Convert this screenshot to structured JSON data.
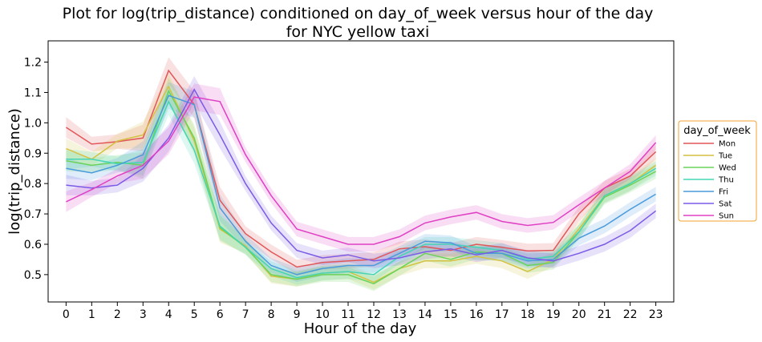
{
  "chart_data": {
    "type": "line",
    "title_line1": "Plot for log(trip_distance) conditioned on day_of_week versus hour of the day",
    "title_line2": "for NYC yellow taxi",
    "xlabel": "Hour of the day",
    "ylabel": "log(trip_distance)",
    "x": [
      0,
      1,
      2,
      3,
      4,
      5,
      6,
      7,
      8,
      9,
      10,
      11,
      12,
      13,
      14,
      15,
      16,
      17,
      18,
      19,
      20,
      21,
      22,
      23
    ],
    "xlim": [
      -0.7,
      23.7
    ],
    "ylim": [
      0.41,
      1.27
    ],
    "yticks": [
      "0.5",
      "0.6",
      "0.7",
      "0.8",
      "0.9",
      "1.0",
      "1.1",
      "1.2"
    ],
    "legend_title": "day_of_week",
    "legend_position": "outside-right",
    "series": [
      {
        "name": "Mon",
        "color": "#e15759",
        "values": [
          0.985,
          0.93,
          0.938,
          0.95,
          1.172,
          1.06,
          0.745,
          0.635,
          0.575,
          0.525,
          0.54,
          0.545,
          0.55,
          0.585,
          0.592,
          0.58,
          0.6,
          0.59,
          0.578,
          0.58,
          0.7,
          0.785,
          0.825,
          0.905
        ]
      },
      {
        "name": "Tue",
        "color": "#d4c142",
        "values": [
          0.915,
          0.88,
          0.94,
          0.96,
          1.12,
          0.94,
          0.65,
          0.595,
          0.495,
          0.485,
          0.505,
          0.51,
          0.475,
          0.52,
          0.545,
          0.545,
          0.56,
          0.545,
          0.51,
          0.55,
          0.65,
          0.76,
          0.8,
          0.86
        ]
      },
      {
        "name": "Wed",
        "color": "#6ad35a",
        "values": [
          0.875,
          0.86,
          0.87,
          0.86,
          1.105,
          0.95,
          0.655,
          0.59,
          0.5,
          0.485,
          0.5,
          0.5,
          0.47,
          0.52,
          0.57,
          0.55,
          0.575,
          0.57,
          0.53,
          0.54,
          0.64,
          0.755,
          0.795,
          0.84
        ]
      },
      {
        "name": "Thu",
        "color": "#45d5b5",
        "values": [
          0.88,
          0.88,
          0.865,
          0.87,
          1.07,
          0.91,
          0.66,
          0.59,
          0.52,
          0.49,
          0.505,
          0.51,
          0.5,
          0.56,
          0.6,
          0.6,
          0.59,
          0.58,
          0.55,
          0.56,
          0.64,
          0.76,
          0.8,
          0.85
        ]
      },
      {
        "name": "Fri",
        "color": "#4a9bdc",
        "values": [
          0.85,
          0.835,
          0.86,
          0.895,
          1.09,
          1.06,
          0.72,
          0.61,
          0.53,
          0.5,
          0.52,
          0.53,
          0.53,
          0.57,
          0.61,
          0.605,
          0.57,
          0.57,
          0.545,
          0.55,
          0.62,
          0.66,
          0.715,
          0.765
        ]
      },
      {
        "name": "Sat",
        "color": "#7b5be6",
        "values": [
          0.795,
          0.785,
          0.795,
          0.85,
          0.95,
          1.11,
          0.96,
          0.8,
          0.67,
          0.58,
          0.555,
          0.565,
          0.545,
          0.555,
          0.575,
          0.585,
          0.565,
          0.58,
          0.555,
          0.545,
          0.57,
          0.6,
          0.645,
          0.71
        ]
      },
      {
        "name": "Sun",
        "color": "#e040c4",
        "values": [
          0.74,
          0.78,
          0.825,
          0.86,
          0.94,
          1.085,
          1.07,
          0.895,
          0.76,
          0.65,
          0.625,
          0.6,
          0.6,
          0.625,
          0.67,
          0.69,
          0.705,
          0.675,
          0.662,
          0.672,
          0.73,
          0.785,
          0.84,
          0.935
        ]
      }
    ]
  }
}
